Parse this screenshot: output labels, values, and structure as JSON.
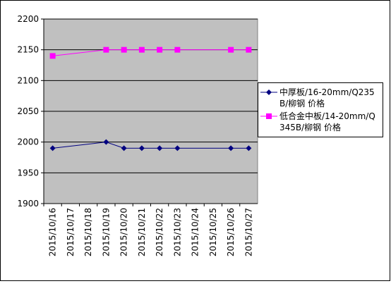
{
  "chart_data": {
    "type": "line",
    "categories": [
      "2015/10/16",
      "2015/10/17",
      "2015/10/18",
      "2015/10/19",
      "2015/10/20",
      "2015/10/21",
      "2015/10/22",
      "2015/10/23",
      "2015/10/24",
      "2015/10/25",
      "2015/10/26",
      "2015/10/27"
    ],
    "series": [
      {
        "name": "中厚板/16-20mm/Q235B/柳钢 价格",
        "color": "#000080",
        "marker": "diamond",
        "x": [
          "2015/10/16",
          "2015/10/19",
          "2015/10/20",
          "2015/10/21",
          "2015/10/22",
          "2015/10/23",
          "2015/10/26",
          "2015/10/27"
        ],
        "values": [
          1990,
          2000,
          1990,
          1990,
          1990,
          1990,
          1990,
          1990
        ]
      },
      {
        "name": "低合金中板/14-20mm/Q345B/柳钢 价格",
        "color": "#ff00ff",
        "marker": "square",
        "x": [
          "2015/10/16",
          "2015/10/19",
          "2015/10/20",
          "2015/10/21",
          "2015/10/22",
          "2015/10/23",
          "2015/10/26",
          "2015/10/27"
        ],
        "values": [
          2140,
          2150,
          2150,
          2150,
          2150,
          2150,
          2150,
          2150
        ]
      }
    ],
    "ylim": [
      1900,
      2200
    ],
    "yticks": [
      1900,
      1950,
      2000,
      2050,
      2100,
      2150,
      2200
    ],
    "grid": true,
    "plot_background": "#c0c0c0",
    "legend": "right"
  }
}
